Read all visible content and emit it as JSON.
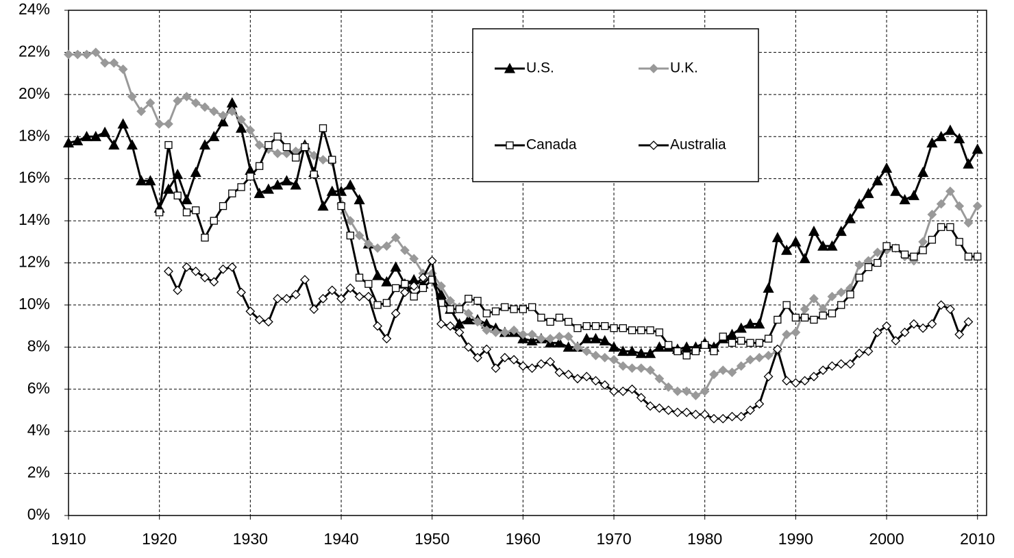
{
  "chart_data": {
    "type": "line",
    "xlim": [
      1910,
      2011
    ],
    "xticks": [
      1910,
      1920,
      1930,
      1940,
      1950,
      1960,
      1970,
      1980,
      1990,
      2000,
      2010
    ],
    "ylim": [
      0,
      24
    ],
    "yticks": [
      {
        "value": 0,
        "label": "0%"
      },
      {
        "value": 2,
        "label": "2%"
      },
      {
        "value": 4,
        "label": "4%"
      },
      {
        "value": 6,
        "label": "6%"
      },
      {
        "value": 8,
        "label": "8%"
      },
      {
        "value": 10,
        "label": "10%"
      },
      {
        "value": 12,
        "label": "12%"
      },
      {
        "value": 14,
        "label": "14%"
      },
      {
        "value": 16,
        "label": "16%"
      },
      {
        "value": 18,
        "label": "18%"
      },
      {
        "value": 20,
        "label": "20%"
      },
      {
        "value": 22,
        "label": "22%"
      },
      {
        "value": 24,
        "label": "24%"
      }
    ],
    "grid": true,
    "legend": "top",
    "series": [
      {
        "name": "U.S.",
        "color": "#000000",
        "marker": "triangle",
        "marker_fill": "#000000",
        "x": [
          1910,
          1911,
          1912,
          1913,
          1914,
          1915,
          1916,
          1917,
          1918,
          1919,
          1920,
          1921,
          1922,
          1923,
          1924,
          1925,
          1926,
          1927,
          1928,
          1929,
          1930,
          1931,
          1932,
          1933,
          1934,
          1935,
          1936,
          1937,
          1938,
          1939,
          1940,
          1941,
          1942,
          1943,
          1944,
          1945,
          1946,
          1947,
          1948,
          1949,
          1950,
          1951,
          1952,
          1953,
          1954,
          1955,
          1956,
          1957,
          1958,
          1959,
          1960,
          1961,
          1962,
          1963,
          1964,
          1965,
          1966,
          1967,
          1968,
          1969,
          1970,
          1971,
          1972,
          1973,
          1974,
          1975,
          1976,
          1977,
          1978,
          1979,
          1980,
          1981,
          1982,
          1983,
          1984,
          1985,
          1986,
          1987,
          1988,
          1989,
          1990,
          1991,
          1992,
          1993,
          1994,
          1995,
          1996,
          1997,
          1998,
          1999,
          2000,
          2001,
          2002,
          2003,
          2004,
          2005,
          2006,
          2007,
          2008,
          2009,
          2010
        ],
        "values": [
          17.7,
          17.8,
          18.0,
          18.0,
          18.2,
          17.6,
          18.6,
          17.6,
          15.9,
          15.9,
          14.6,
          15.5,
          16.2,
          15.0,
          16.3,
          17.6,
          18.0,
          18.7,
          19.6,
          18.4,
          16.4,
          15.3,
          15.5,
          15.7,
          15.9,
          15.7,
          17.6,
          16.3,
          14.7,
          15.4,
          15.4,
          15.7,
          15.0,
          12.9,
          11.4,
          11.1,
          11.8,
          11.0,
          11.2,
          11.0,
          11.4,
          10.5,
          9.8,
          9.1,
          9.3,
          9.3,
          9.1,
          8.9,
          8.7,
          8.7,
          8.4,
          8.3,
          8.4,
          8.2,
          8.2,
          8.0,
          8.0,
          8.4,
          8.4,
          8.3,
          8.0,
          7.8,
          7.8,
          7.7,
          7.7,
          8.0,
          8.0,
          7.9,
          8.0,
          8.0,
          8.2,
          8.0,
          8.4,
          8.6,
          8.9,
          9.1,
          9.1,
          10.8,
          13.2,
          12.6,
          13.0,
          12.2,
          13.5,
          12.8,
          12.8,
          13.5,
          14.1,
          14.8,
          15.3,
          15.9,
          16.5,
          15.4,
          15.0,
          15.2,
          16.3,
          17.7,
          18.0,
          18.3,
          17.9,
          16.7,
          17.4
        ]
      },
      {
        "name": "U.K.",
        "color": "#999999",
        "marker": "diamond",
        "marker_fill": "#999999",
        "x": [
          1910,
          1911,
          1912,
          1913,
          1914,
          1915,
          1916,
          1917,
          1918,
          1919,
          1920,
          1921,
          1922,
          1923,
          1924,
          1925,
          1926,
          1927,
          1928,
          1929,
          1930,
          1931,
          1932,
          1933,
          1934,
          1935,
          1936,
          1937,
          1938,
          1939,
          1940,
          1941,
          1942,
          1943,
          1944,
          1945,
          1946,
          1947,
          1948,
          1949,
          1950,
          1951,
          1952,
          1953,
          1954,
          1955,
          1956,
          1957,
          1958,
          1959,
          1960,
          1961,
          1962,
          1963,
          1964,
          1965,
          1966,
          1967,
          1968,
          1969,
          1970,
          1971,
          1972,
          1973,
          1974,
          1975,
          1976,
          1977,
          1978,
          1979,
          1980,
          1981,
          1982,
          1983,
          1984,
          1985,
          1986,
          1987,
          1988,
          1989,
          1990,
          1991,
          1992,
          1993,
          1994,
          1995,
          1996,
          1997,
          1998,
          1999,
          2000,
          2001,
          2002,
          2003,
          2004,
          2005,
          2006,
          2007,
          2008,
          2009,
          2010
        ],
        "values": [
          21.9,
          21.9,
          21.9,
          22.0,
          21.5,
          21.5,
          21.2,
          19.9,
          19.2,
          19.6,
          18.6,
          18.6,
          19.7,
          19.9,
          19.6,
          19.4,
          19.2,
          19.0,
          19.2,
          18.8,
          18.3,
          17.6,
          17.4,
          17.2,
          17.2,
          17.3,
          17.5,
          17.1,
          16.9,
          16.8,
          14.8,
          14.0,
          13.3,
          12.9,
          12.7,
          12.8,
          13.2,
          12.6,
          12.2,
          11.5,
          11.5,
          10.9,
          10.2,
          9.9,
          9.6,
          9.2,
          8.8,
          8.7,
          8.7,
          8.8,
          8.6,
          8.6,
          8.4,
          8.4,
          8.5,
          8.5,
          8.0,
          7.8,
          7.6,
          7.5,
          7.4,
          7.1,
          7.0,
          7.0,
          6.9,
          6.5,
          6.1,
          5.9,
          5.9,
          5.7,
          5.9,
          6.7,
          6.9,
          6.8,
          7.1,
          7.4,
          7.5,
          7.6,
          7.8,
          8.6,
          8.7,
          9.8,
          10.3,
          9.8,
          10.4,
          10.6,
          10.8,
          11.9,
          12.1,
          12.5,
          12.6,
          12.7,
          12.3,
          12.1,
          13.0,
          14.3,
          14.8,
          15.4,
          14.7,
          13.9,
          14.7
        ]
      },
      {
        "name": "Canada",
        "color": "#000000",
        "marker": "square",
        "marker_fill": "#ffffff",
        "x": [
          1920,
          1921,
          1922,
          1923,
          1924,
          1925,
          1926,
          1927,
          1928,
          1929,
          1930,
          1931,
          1932,
          1933,
          1934,
          1935,
          1936,
          1937,
          1938,
          1939,
          1940,
          1941,
          1942,
          1943,
          1944,
          1945,
          1946,
          1947,
          1948,
          1949,
          1950,
          1951,
          1952,
          1953,
          1954,
          1955,
          1956,
          1957,
          1958,
          1959,
          1960,
          1961,
          1962,
          1963,
          1964,
          1965,
          1966,
          1967,
          1968,
          1969,
          1970,
          1971,
          1972,
          1973,
          1974,
          1975,
          1976,
          1977,
          1978,
          1979,
          1980,
          1981,
          1982,
          1983,
          1984,
          1985,
          1986,
          1987,
          1988,
          1989,
          1990,
          1991,
          1992,
          1993,
          1994,
          1995,
          1996,
          1997,
          1998,
          1999,
          2000,
          2001,
          2002,
          2003,
          2004,
          2005,
          2006,
          2007,
          2008,
          2009,
          2010
        ],
        "values": [
          14.4,
          17.6,
          15.2,
          14.4,
          14.5,
          13.2,
          14.0,
          14.7,
          15.3,
          15.6,
          16.1,
          16.6,
          17.6,
          18.0,
          17.5,
          17.0,
          17.5,
          16.2,
          18.4,
          16.9,
          14.7,
          13.3,
          11.3,
          11.0,
          10.0,
          10.1,
          10.8,
          11.0,
          10.4,
          10.8,
          11.2,
          10.1,
          9.8,
          9.8,
          10.3,
          10.2,
          9.6,
          9.7,
          9.9,
          9.8,
          9.8,
          9.9,
          9.4,
          9.2,
          9.4,
          9.2,
          8.9,
          9.0,
          9.0,
          9.0,
          8.9,
          8.9,
          8.8,
          8.8,
          8.8,
          8.7,
          8.1,
          7.8,
          7.6,
          7.8,
          8.1,
          7.8,
          8.5,
          8.2,
          8.3,
          8.2,
          8.2,
          8.4,
          9.3,
          10.0,
          9.4,
          9.4,
          9.3,
          9.5,
          9.6,
          10.0,
          10.5,
          11.3,
          11.8,
          12.0,
          12.8,
          12.7,
          12.4,
          12.3,
          12.6,
          13.1,
          13.7,
          13.7,
          13.0,
          12.3,
          12.3
        ]
      },
      {
        "name": "Australia",
        "color": "#000000",
        "marker": "diamond",
        "marker_fill": "#ffffff",
        "x": [
          1921,
          1922,
          1923,
          1924,
          1925,
          1926,
          1927,
          1928,
          1929,
          1930,
          1931,
          1932,
          1933,
          1934,
          1935,
          1936,
          1937,
          1938,
          1939,
          1940,
          1941,
          1942,
          1943,
          1944,
          1945,
          1946,
          1947,
          1948,
          1949,
          1950,
          1951,
          1952,
          1953,
          1954,
          1955,
          1956,
          1957,
          1958,
          1959,
          1960,
          1961,
          1962,
          1963,
          1964,
          1965,
          1966,
          1967,
          1968,
          1969,
          1970,
          1971,
          1972,
          1973,
          1974,
          1975,
          1976,
          1977,
          1978,
          1979,
          1980,
          1981,
          1982,
          1983,
          1984,
          1985,
          1986,
          1987,
          1988,
          1989,
          1990,
          1991,
          1992,
          1993,
          1994,
          1995,
          1996,
          1997,
          1998,
          1999,
          2000,
          2001,
          2002,
          2003,
          2004,
          2005,
          2006,
          2007,
          2008,
          2009
        ],
        "values": [
          11.6,
          10.7,
          11.8,
          11.6,
          11.3,
          11.1,
          11.7,
          11.8,
          10.6,
          9.7,
          9.3,
          9.2,
          10.3,
          10.3,
          10.5,
          11.2,
          9.8,
          10.3,
          10.7,
          10.3,
          10.8,
          10.4,
          10.4,
          9.0,
          8.4,
          9.6,
          10.6,
          10.9,
          11.3,
          12.1,
          9.1,
          9.0,
          8.7,
          8.0,
          7.5,
          7.9,
          7.0,
          7.5,
          7.4,
          7.1,
          7.0,
          7.2,
          7.3,
          6.8,
          6.7,
          6.5,
          6.6,
          6.4,
          6.2,
          5.9,
          5.9,
          6.0,
          5.6,
          5.2,
          5.1,
          5.0,
          4.9,
          4.9,
          4.8,
          4.8,
          4.6,
          4.6,
          4.7,
          4.7,
          5.0,
          5.3,
          6.6,
          7.9,
          6.4,
          6.3,
          6.4,
          6.6,
          6.9,
          7.1,
          7.2,
          7.2,
          7.7,
          7.8,
          8.7,
          9.0,
          8.3,
          8.7,
          9.1,
          8.9,
          9.1,
          10.0,
          9.8,
          8.6,
          9.2
        ]
      }
    ]
  }
}
